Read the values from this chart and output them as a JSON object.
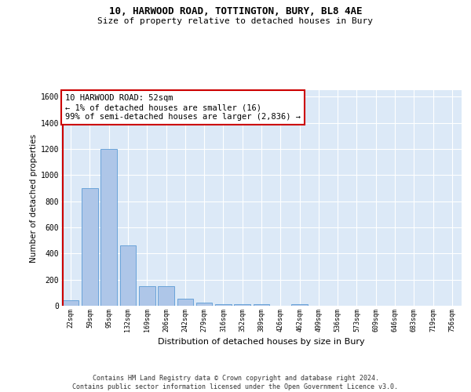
{
  "title1": "10, HARWOOD ROAD, TOTTINGTON, BURY, BL8 4AE",
  "title2": "Size of property relative to detached houses in Bury",
  "xlabel": "Distribution of detached houses by size in Bury",
  "ylabel": "Number of detached properties",
  "categories": [
    "22sqm",
    "59sqm",
    "95sqm",
    "132sqm",
    "169sqm",
    "206sqm",
    "242sqm",
    "279sqm",
    "316sqm",
    "352sqm",
    "389sqm",
    "426sqm",
    "462sqm",
    "499sqm",
    "536sqm",
    "573sqm",
    "609sqm",
    "646sqm",
    "683sqm",
    "719sqm",
    "756sqm"
  ],
  "values": [
    45,
    900,
    1200,
    460,
    150,
    150,
    55,
    25,
    15,
    15,
    15,
    0,
    15,
    0,
    0,
    0,
    0,
    0,
    0,
    0,
    0
  ],
  "bar_color": "#aec6e8",
  "bar_edge_color": "#5b9bd5",
  "annotation_box_text": "10 HARWOOD ROAD: 52sqm\n← 1% of detached houses are smaller (16)\n99% of semi-detached houses are larger (2,836) →",
  "ylim": [
    0,
    1650
  ],
  "yticks": [
    0,
    200,
    400,
    600,
    800,
    1000,
    1200,
    1400,
    1600
  ],
  "bg_color": "#dce9f7",
  "grid_color": "#ffffff",
  "footer": "Contains HM Land Registry data © Crown copyright and database right 2024.\nContains public sector information licensed under the Open Government Licence v3.0.",
  "red_line_color": "#cc0000",
  "annotation_border_color": "#cc0000",
  "annotation_bg": "#ffffff"
}
